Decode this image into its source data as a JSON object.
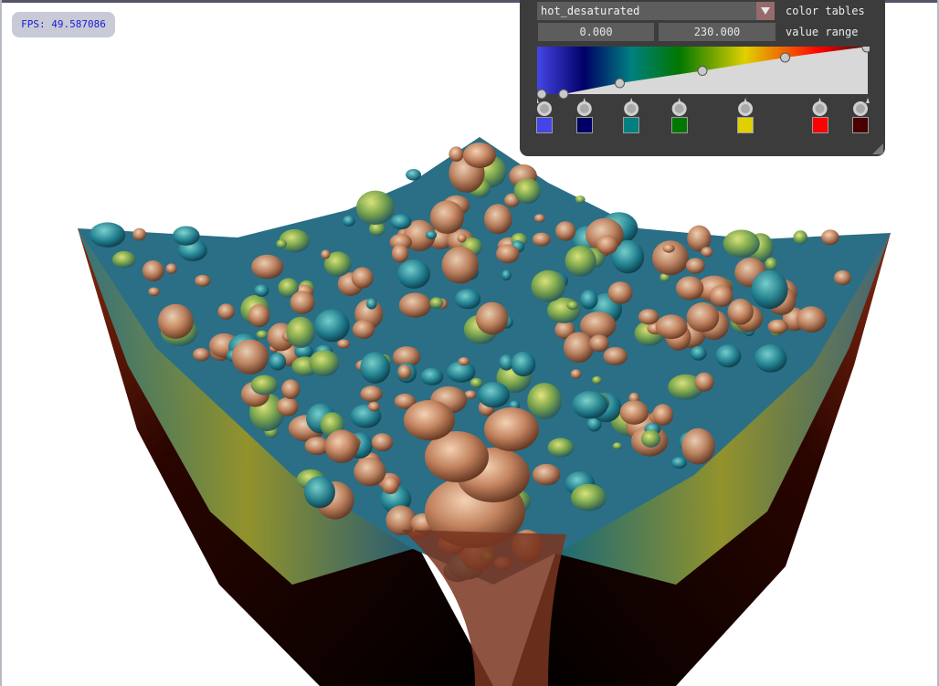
{
  "overlay": {
    "fps_label": "FPS: 49.587086"
  },
  "panel": {
    "color_table_value": "hot_desaturated",
    "color_tables_label": "color tables",
    "range_min": "0.000",
    "range_max": "230.000",
    "value_range_label": "value range",
    "opacity_points": [
      {
        "pos": 0.0,
        "opacity": 0.0
      },
      {
        "pos": 0.08,
        "opacity": 0.0
      },
      {
        "pos": 0.25,
        "opacity": 0.23
      },
      {
        "pos": 0.5,
        "opacity": 0.49
      },
      {
        "pos": 0.75,
        "opacity": 0.77
      },
      {
        "pos": 1.0,
        "opacity": 1.0
      }
    ],
    "color_stops": [
      {
        "pos": 0.0,
        "color": "#4545e6"
      },
      {
        "pos": 0.143,
        "color": "#000066"
      },
      {
        "pos": 0.285,
        "color": "#008080"
      },
      {
        "pos": 0.43,
        "color": "#007700"
      },
      {
        "pos": 0.63,
        "color": "#e0d000"
      },
      {
        "pos": 0.855,
        "color": "#ff0000"
      },
      {
        "pos": 1.0,
        "color": "#4a0000"
      }
    ]
  }
}
